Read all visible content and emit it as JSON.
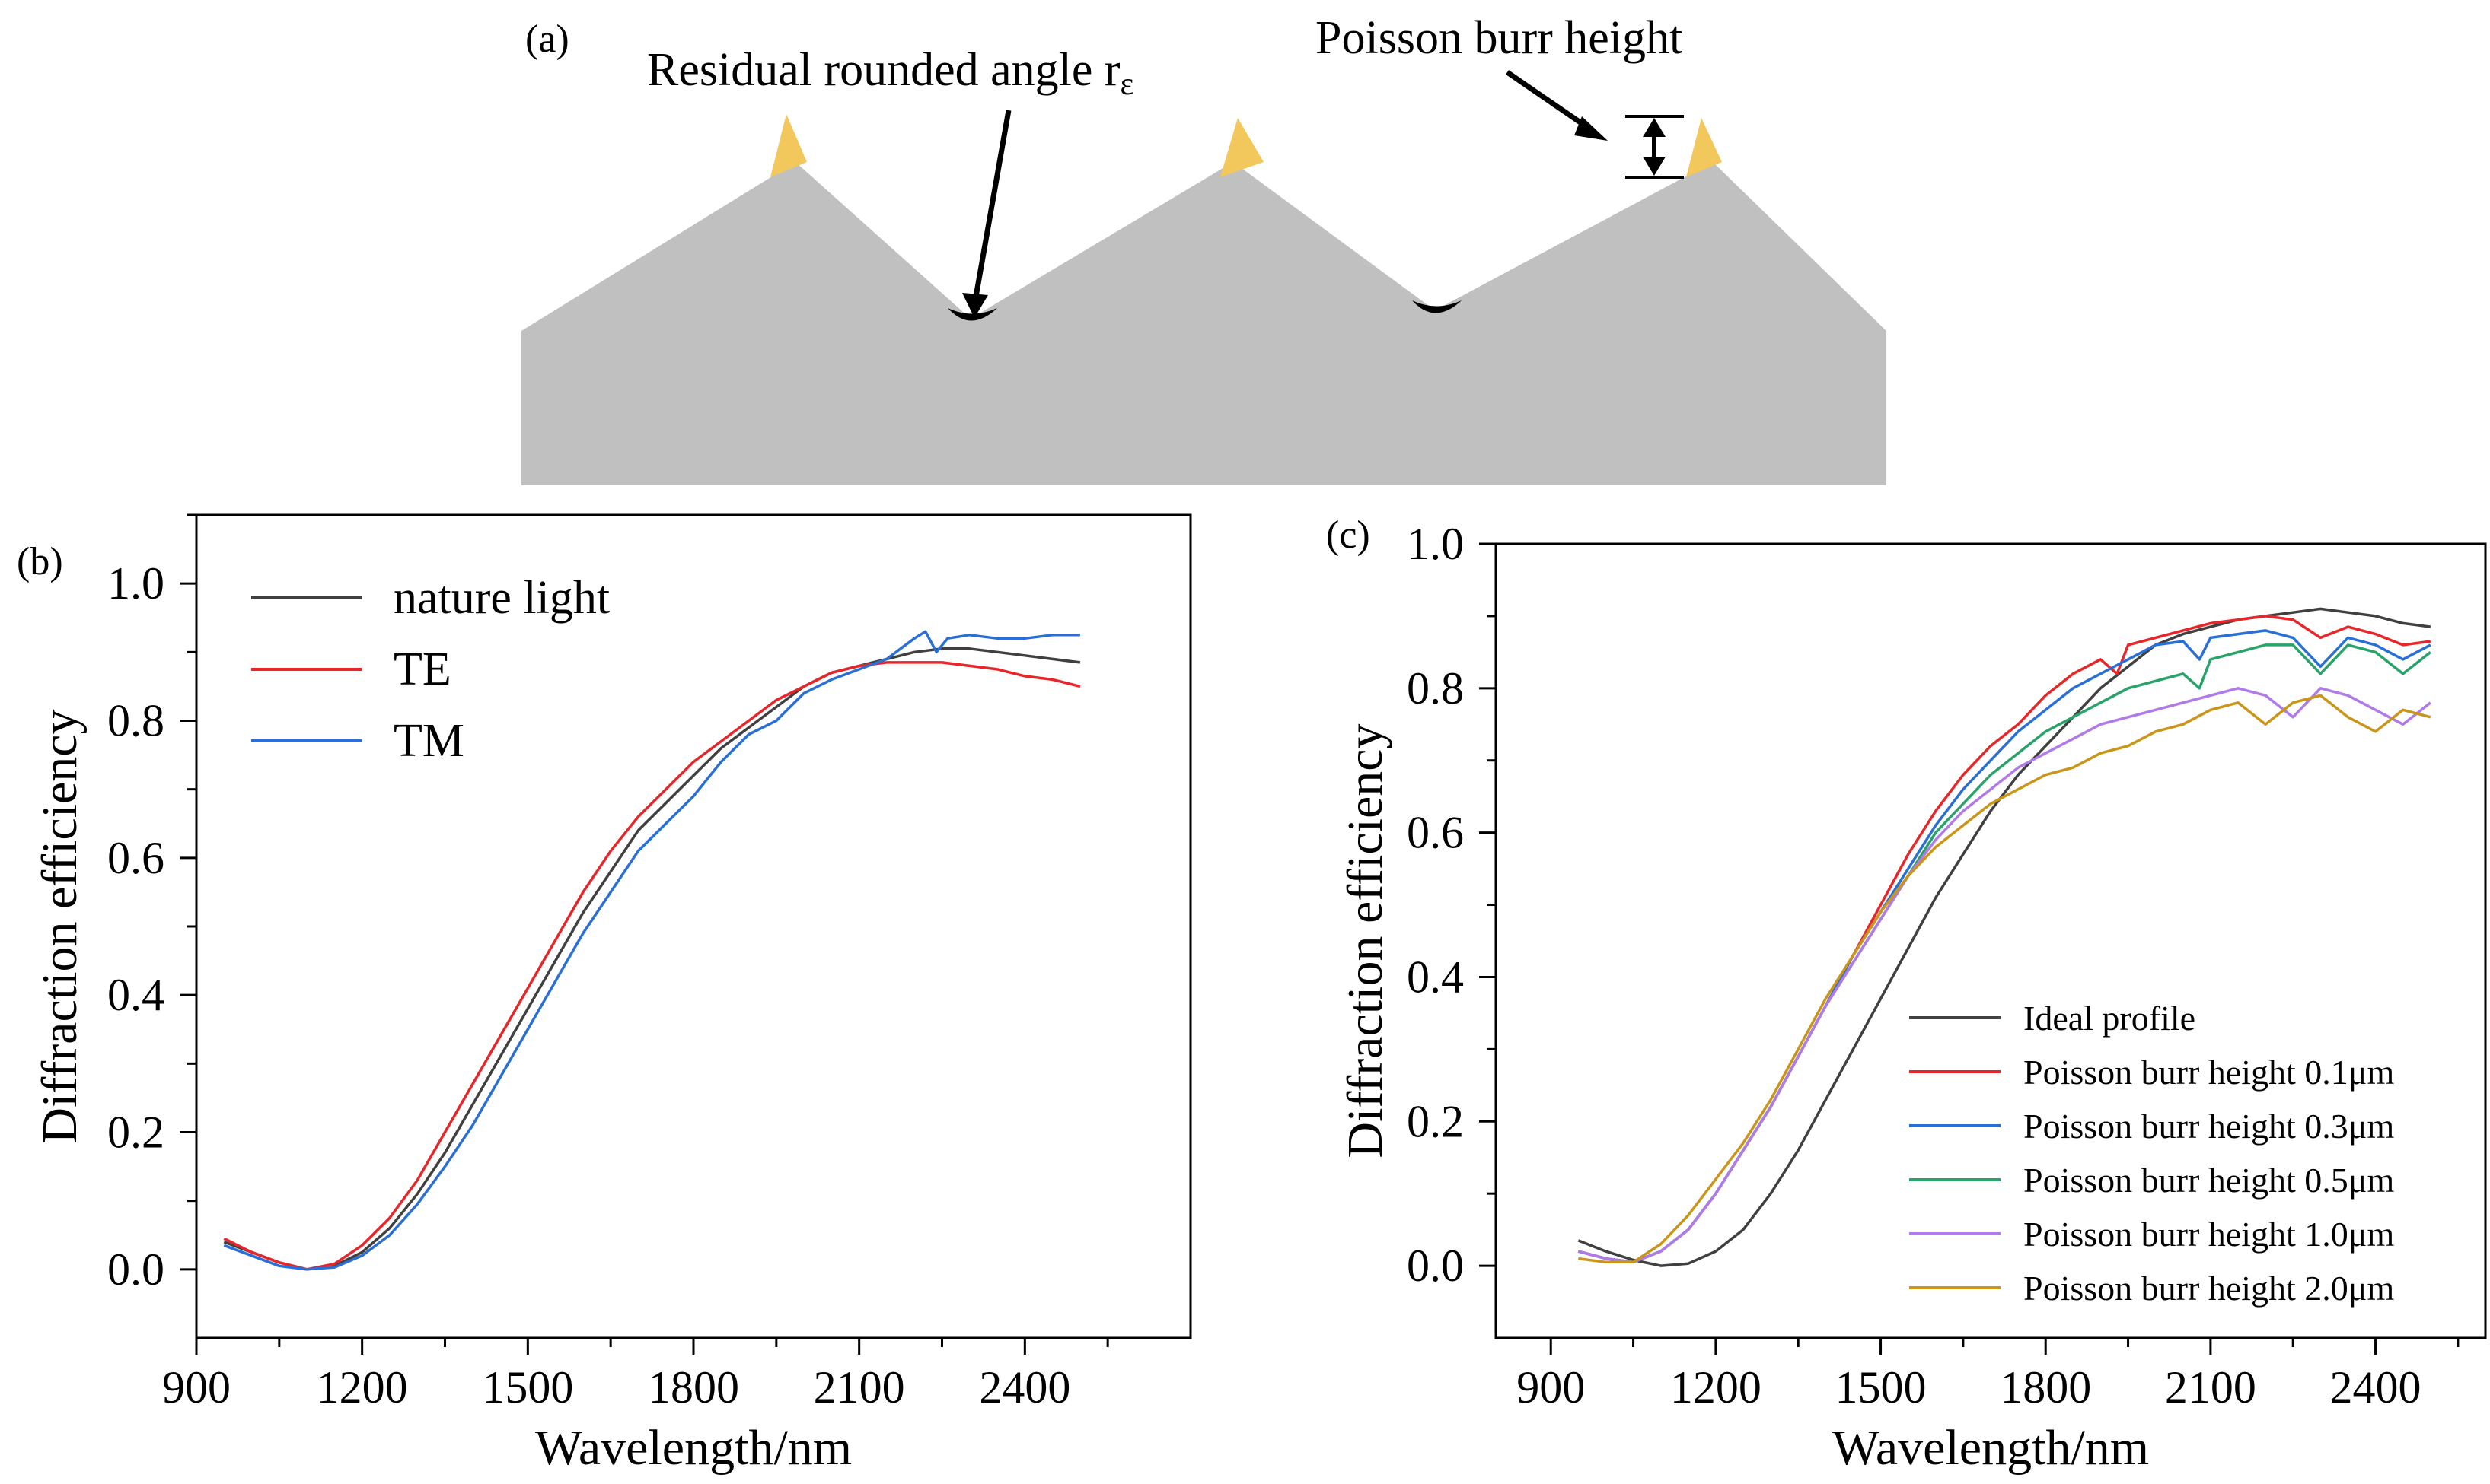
{
  "panel_a": {
    "label": "(a)",
    "residual_label": "Residual rounded angle r",
    "residual_subscript": "ε",
    "burr_label": "Poisson burr height",
    "profile_color": "#c0c0c0",
    "burr_color": "#f2c75c",
    "tip_color": "#000000"
  },
  "panel_b": {
    "label": "(b)"
  },
  "panel_c": {
    "label": "(c)"
  },
  "chart_data": [
    {
      "type": "line",
      "panel": "(b)",
      "title": "",
      "xlabel": "Wavelength/nm",
      "ylabel": "Diffraction efficiency",
      "xlim": [
        900,
        2700
      ],
      "ylim": [
        -0.1,
        1.1
      ],
      "xticks": [
        900,
        1200,
        1500,
        1800,
        2100,
        2400
      ],
      "yticks": [
        0.0,
        0.2,
        0.4,
        0.6,
        0.8,
        1.0
      ],
      "ytick_labels": [
        "0.0",
        "0.2",
        "0.4",
        "0.6",
        "0.8",
        "1.0"
      ],
      "legend_position": "top-left",
      "series": [
        {
          "name": "nature light",
          "color": "#404040",
          "x": [
            950,
            1000,
            1050,
            1100,
            1150,
            1200,
            1250,
            1300,
            1350,
            1400,
            1450,
            1500,
            1550,
            1600,
            1650,
            1700,
            1750,
            1800,
            1850,
            1900,
            1950,
            2000,
            2050,
            2100,
            2150,
            2200,
            2250,
            2300,
            2350,
            2400,
            2450,
            2500
          ],
          "y": [
            0.04,
            0.025,
            0.01,
            0.0,
            0.005,
            0.025,
            0.06,
            0.11,
            0.17,
            0.24,
            0.31,
            0.38,
            0.45,
            0.52,
            0.58,
            0.64,
            0.68,
            0.72,
            0.76,
            0.79,
            0.82,
            0.85,
            0.87,
            0.88,
            0.89,
            0.9,
            0.905,
            0.905,
            0.9,
            0.895,
            0.89,
            0.885
          ]
        },
        {
          "name": "TE",
          "color": "#e8262a",
          "x": [
            950,
            1000,
            1050,
            1100,
            1150,
            1200,
            1250,
            1300,
            1350,
            1400,
            1450,
            1500,
            1550,
            1600,
            1650,
            1700,
            1750,
            1800,
            1850,
            1900,
            1950,
            2000,
            2050,
            2100,
            2150,
            2200,
            2250,
            2300,
            2350,
            2400,
            2450,
            2500
          ],
          "y": [
            0.045,
            0.025,
            0.01,
            0.0,
            0.008,
            0.035,
            0.075,
            0.13,
            0.2,
            0.27,
            0.34,
            0.41,
            0.48,
            0.55,
            0.61,
            0.66,
            0.7,
            0.74,
            0.77,
            0.8,
            0.83,
            0.85,
            0.87,
            0.88,
            0.885,
            0.885,
            0.885,
            0.88,
            0.875,
            0.865,
            0.86,
            0.85
          ]
        },
        {
          "name": "TM",
          "color": "#2a6fd6",
          "x": [
            950,
            1000,
            1050,
            1100,
            1150,
            1200,
            1250,
            1300,
            1350,
            1400,
            1450,
            1500,
            1550,
            1600,
            1650,
            1700,
            1750,
            1800,
            1850,
            1900,
            1950,
            2000,
            2050,
            2100,
            2150,
            2200,
            2220,
            2240,
            2260,
            2300,
            2350,
            2400,
            2450,
            2500
          ],
          "y": [
            0.035,
            0.02,
            0.005,
            0.0,
            0.003,
            0.02,
            0.05,
            0.095,
            0.15,
            0.21,
            0.28,
            0.35,
            0.42,
            0.49,
            0.55,
            0.61,
            0.65,
            0.69,
            0.74,
            0.78,
            0.8,
            0.84,
            0.86,
            0.875,
            0.89,
            0.92,
            0.93,
            0.9,
            0.92,
            0.925,
            0.92,
            0.92,
            0.925,
            0.925
          ]
        }
      ]
    },
    {
      "type": "line",
      "panel": "(c)",
      "title": "",
      "xlabel": "Wavelength/nm",
      "ylabel": "Diffraction efficiency",
      "xlim": [
        800,
        2600
      ],
      "ylim": [
        -0.1,
        1.0
      ],
      "xticks": [
        900,
        1200,
        1500,
        1800,
        2100,
        2400
      ],
      "yticks": [
        0.0,
        0.2,
        0.4,
        0.6,
        0.8,
        1.0
      ],
      "ytick_labels": [
        "0.0",
        "0.2",
        "0.4",
        "0.6",
        "0.8",
        "1.0"
      ],
      "legend_position": "bottom-right",
      "series": [
        {
          "name": "Ideal profile",
          "color": "#404040",
          "x": [
            950,
            1000,
            1050,
            1100,
            1150,
            1200,
            1250,
            1300,
            1350,
            1400,
            1450,
            1500,
            1550,
            1600,
            1650,
            1700,
            1750,
            1800,
            1850,
            1900,
            1950,
            2000,
            2050,
            2100,
            2150,
            2200,
            2250,
            2300,
            2350,
            2400,
            2450,
            2500
          ],
          "y": [
            0.035,
            0.02,
            0.008,
            0.0,
            0.003,
            0.02,
            0.05,
            0.1,
            0.16,
            0.23,
            0.3,
            0.37,
            0.44,
            0.51,
            0.57,
            0.63,
            0.68,
            0.72,
            0.76,
            0.8,
            0.83,
            0.86,
            0.875,
            0.885,
            0.895,
            0.9,
            0.905,
            0.91,
            0.905,
            0.9,
            0.89,
            0.885
          ]
        },
        {
          "name": "Poisson burr height 0.1μm",
          "color": "#e8262a",
          "x": [
            950,
            1000,
            1050,
            1100,
            1150,
            1200,
            1250,
            1300,
            1350,
            1400,
            1450,
            1500,
            1550,
            1600,
            1650,
            1700,
            1750,
            1800,
            1850,
            1900,
            1930,
            1950,
            2000,
            2050,
            2100,
            2150,
            2200,
            2250,
            2300,
            2350,
            2400,
            2450,
            2500
          ],
          "y": [
            0.02,
            0.01,
            0.005,
            0.02,
            0.05,
            0.1,
            0.16,
            0.22,
            0.29,
            0.36,
            0.43,
            0.5,
            0.57,
            0.63,
            0.68,
            0.72,
            0.75,
            0.79,
            0.82,
            0.84,
            0.82,
            0.86,
            0.87,
            0.88,
            0.89,
            0.895,
            0.9,
            0.895,
            0.87,
            0.885,
            0.875,
            0.86,
            0.865
          ]
        },
        {
          "name": "Poisson burr height 0.3μm",
          "color": "#2a6fd6",
          "x": [
            950,
            1000,
            1050,
            1100,
            1150,
            1200,
            1250,
            1300,
            1350,
            1400,
            1450,
            1500,
            1550,
            1600,
            1650,
            1700,
            1750,
            1800,
            1850,
            1900,
            1950,
            2000,
            2050,
            2080,
            2100,
            2150,
            2200,
            2250,
            2300,
            2350,
            2400,
            2450,
            2500
          ],
          "y": [
            0.02,
            0.01,
            0.005,
            0.02,
            0.05,
            0.1,
            0.16,
            0.22,
            0.29,
            0.36,
            0.43,
            0.49,
            0.55,
            0.61,
            0.66,
            0.7,
            0.74,
            0.77,
            0.8,
            0.82,
            0.84,
            0.86,
            0.865,
            0.84,
            0.87,
            0.875,
            0.88,
            0.87,
            0.83,
            0.87,
            0.86,
            0.84,
            0.86
          ]
        },
        {
          "name": "Poisson burr height 0.5μm",
          "color": "#2aa36b",
          "x": [
            950,
            1000,
            1050,
            1100,
            1150,
            1200,
            1250,
            1300,
            1350,
            1400,
            1450,
            1500,
            1550,
            1600,
            1650,
            1700,
            1750,
            1800,
            1850,
            1900,
            1950,
            2000,
            2050,
            2080,
            2100,
            2150,
            2200,
            2250,
            2300,
            2350,
            2400,
            2450,
            2500
          ],
          "y": [
            0.02,
            0.01,
            0.005,
            0.02,
            0.05,
            0.1,
            0.16,
            0.22,
            0.29,
            0.36,
            0.42,
            0.48,
            0.54,
            0.6,
            0.64,
            0.68,
            0.71,
            0.74,
            0.76,
            0.78,
            0.8,
            0.81,
            0.82,
            0.8,
            0.84,
            0.85,
            0.86,
            0.86,
            0.82,
            0.86,
            0.85,
            0.82,
            0.85
          ]
        },
        {
          "name": "Poisson burr height 1.0μm",
          "color": "#b07ae8",
          "x": [
            950,
            1000,
            1050,
            1100,
            1150,
            1200,
            1250,
            1300,
            1350,
            1400,
            1450,
            1500,
            1550,
            1600,
            1650,
            1700,
            1750,
            1800,
            1850,
            1900,
            1950,
            2000,
            2050,
            2100,
            2150,
            2200,
            2250,
            2300,
            2350,
            2400,
            2450,
            2500
          ],
          "y": [
            0.02,
            0.01,
            0.005,
            0.02,
            0.05,
            0.1,
            0.16,
            0.22,
            0.29,
            0.36,
            0.42,
            0.48,
            0.54,
            0.59,
            0.63,
            0.66,
            0.69,
            0.71,
            0.73,
            0.75,
            0.76,
            0.77,
            0.78,
            0.79,
            0.8,
            0.79,
            0.76,
            0.8,
            0.79,
            0.77,
            0.75,
            0.78
          ]
        },
        {
          "name": "Poisson burr height 2.0μm",
          "color": "#c9961a",
          "x": [
            950,
            1000,
            1050,
            1100,
            1150,
            1200,
            1250,
            1300,
            1350,
            1400,
            1450,
            1500,
            1550,
            1600,
            1650,
            1700,
            1750,
            1800,
            1850,
            1900,
            1950,
            2000,
            2050,
            2100,
            2150,
            2200,
            2250,
            2300,
            2350,
            2400,
            2450,
            2500
          ],
          "y": [
            0.01,
            0.005,
            0.005,
            0.03,
            0.07,
            0.12,
            0.17,
            0.23,
            0.3,
            0.37,
            0.43,
            0.49,
            0.54,
            0.58,
            0.61,
            0.64,
            0.66,
            0.68,
            0.69,
            0.71,
            0.72,
            0.74,
            0.75,
            0.77,
            0.78,
            0.75,
            0.78,
            0.79,
            0.76,
            0.74,
            0.77,
            0.76
          ]
        }
      ]
    }
  ]
}
